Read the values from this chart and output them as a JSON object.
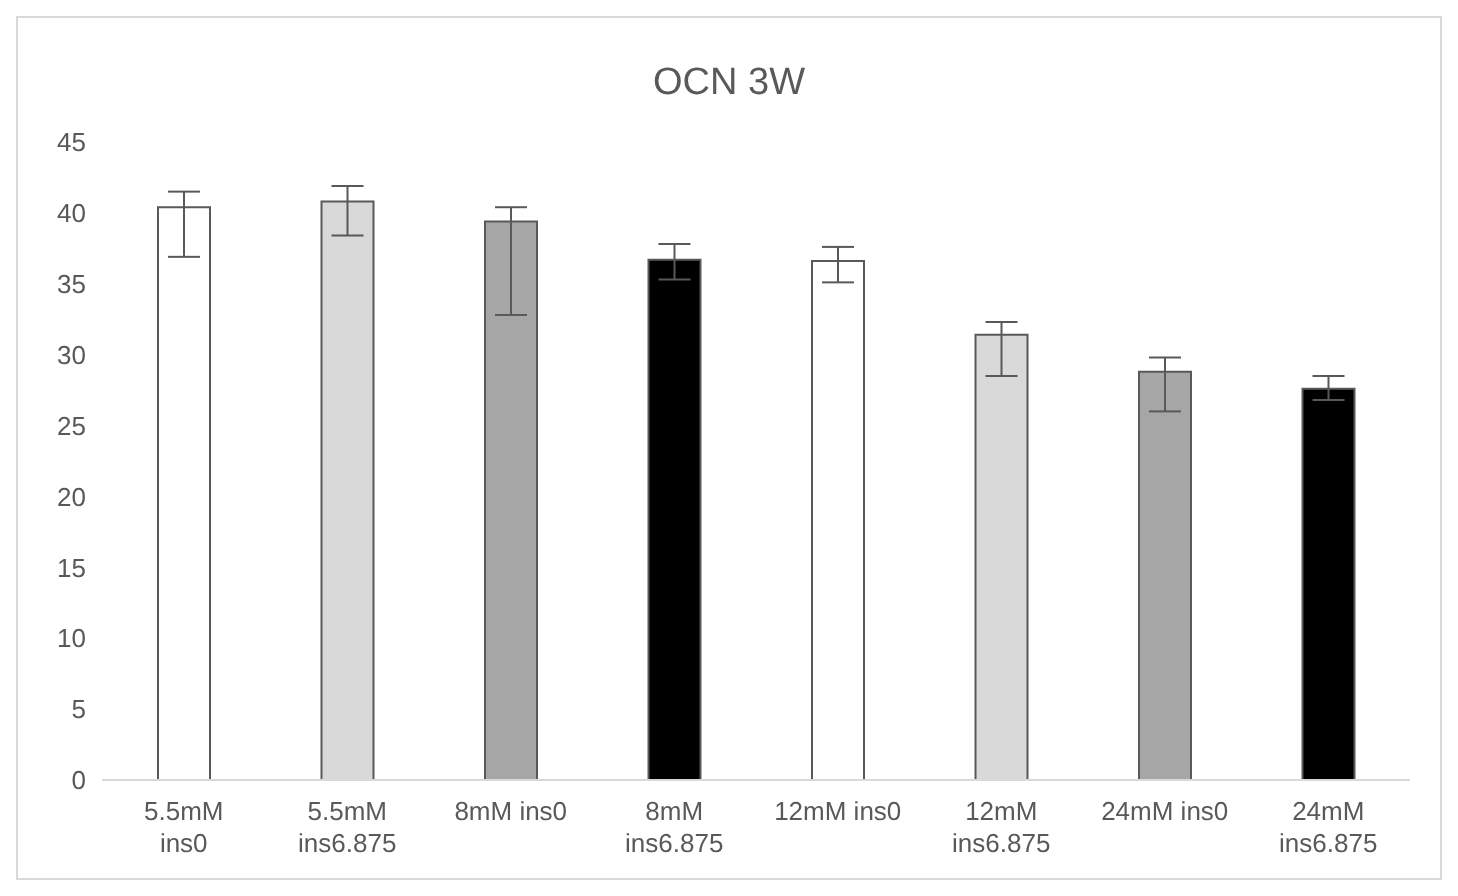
{
  "chart_data": {
    "type": "bar",
    "title": "OCN 3W",
    "categories": [
      "5.5mM ins0",
      "5.5mM ins6.875",
      "8mM ins0",
      "8mM ins6.875",
      "12mM ins0",
      "12mM ins6.875",
      "24mM ins0",
      "24mM ins6.875"
    ],
    "values": [
      40.4,
      40.8,
      39.4,
      36.7,
      36.6,
      31.4,
      28.8,
      27.6
    ],
    "colors": [
      "#ffffff",
      "#d9d9d9",
      "#a6a6a6",
      "#000000",
      "#ffffff",
      "#d9d9d9",
      "#a6a6a6",
      "#000000"
    ],
    "errors": [
      [
        36.9,
        41.5
      ],
      [
        38.4,
        41.9
      ],
      [
        32.8,
        40.4
      ],
      [
        35.3,
        37.8
      ],
      [
        35.1,
        37.6
      ],
      [
        28.5,
        32.3
      ],
      [
        26.0,
        29.8
      ],
      [
        26.8,
        28.5
      ]
    ],
    "ylim": [
      0,
      45
    ],
    "yticks": [
      0,
      5,
      10,
      15,
      20,
      25,
      30,
      35,
      40,
      45
    ],
    "grid": false,
    "legend": false
  }
}
